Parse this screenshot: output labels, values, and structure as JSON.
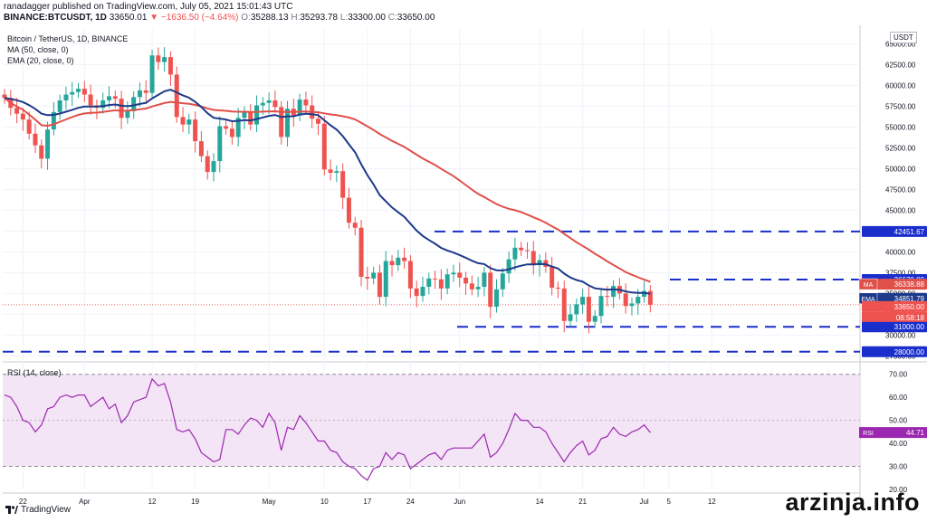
{
  "header": {
    "line1": "ranadagger published on TradingView.com, July 05, 2021 15:01:43 UTC",
    "symbol": "BINANCE:BTCUSDT, 1D",
    "last": "33650.01",
    "change": "−1636.50 (−4.64%)",
    "o_label": "O:",
    "o": "35288.13",
    "h_label": "H:",
    "h": "35293.78",
    "l_label": "L:",
    "l": "33300.00",
    "c_label": "C:",
    "c": "33650.00"
  },
  "legend": {
    "title": "Bitcoin / TetherUS, 1D, BINANCE",
    "ma": "MA (50, close, 0)",
    "ema": "EMA (20, close, 0)",
    "rsi": "RSI (14, close)"
  },
  "currency": "USDT",
  "brand": "TradingView",
  "watermark": "arzinja.info",
  "colors": {
    "up": "#26a69a",
    "down": "#ef5350",
    "ma": "#e0504a",
    "ema": "#1e3a8a",
    "level": "#1a2ecc",
    "rsi": "#9c27b0",
    "rsi_band": "#f3e5f5"
  },
  "chart_data": [
    {
      "type": "candlestick",
      "title": "Bitcoin / TetherUS, 1D, BINANCE",
      "ylim": [
        27000,
        67000
      ],
      "y_ticks": [
        "65000.00",
        "62500.00",
        "60000.00",
        "57500.00",
        "55000.00",
        "52500.00",
        "50000.00",
        "47500.00",
        "45000.00",
        "42500.00",
        "40000.00",
        "37500.00",
        "35000.00",
        "32500.00",
        "30000.00",
        "27500.00"
      ],
      "x_ticks": [
        {
          "label": "22",
          "i": 3
        },
        {
          "label": "Apr",
          "i": 13
        },
        {
          "label": "12",
          "i": 24
        },
        {
          "label": "19",
          "i": 31
        },
        {
          "label": "May",
          "i": 43
        },
        {
          "label": "10",
          "i": 52
        },
        {
          "label": "17",
          "i": 59
        },
        {
          "label": "24",
          "i": 66
        },
        {
          "label": "Jun",
          "i": 74
        },
        {
          "label": "14",
          "i": 87
        },
        {
          "label": "21",
          "i": 94
        },
        {
          "label": "Jul",
          "i": 104
        },
        {
          "label": "5",
          "i": 108
        },
        {
          "label": "12",
          "i": 115
        }
      ],
      "closes": [
        58500,
        57300,
        56600,
        55900,
        54200,
        52800,
        51200,
        54700,
        56800,
        58200,
        58900,
        59200,
        59600,
        58900,
        57600,
        57300,
        58200,
        58700,
        58400,
        56100,
        56900,
        58600,
        59400,
        59100,
        63600,
        62800,
        63400,
        61300,
        56200,
        55300,
        55900,
        53300,
        51500,
        49600,
        50900,
        55100,
        54800,
        53800,
        56100,
        56800,
        55300,
        57600,
        57900,
        58200,
        57400,
        53800,
        57200,
        56400,
        58300,
        57600,
        56000,
        55400,
        49900,
        49500,
        49700,
        46500,
        43500,
        42900,
        37000,
        36800,
        37500,
        34600,
        38900,
        38400,
        39300,
        38900,
        35600,
        34700,
        35800,
        36800,
        36700,
        35600,
        37300,
        37500,
        36900,
        36200,
        35500,
        35800,
        37500,
        33400,
        35500,
        37400,
        39100,
        40500,
        40200,
        40100,
        38400,
        39000,
        38200,
        35700,
        35600,
        31700,
        32500,
        33700,
        34600,
        31600,
        32300,
        34700,
        34600,
        35900,
        35000,
        33500,
        33800,
        34600,
        35300,
        33650
      ],
      "opens_offset_note": "",
      "levels": [
        {
          "label": "42451.67",
          "value": 42451.67
        },
        {
          "label": "36670.00",
          "value": 36670
        },
        {
          "label": "31000.00",
          "value": 31000
        },
        {
          "label": "28000.00",
          "value": 28000
        }
      ],
      "last_price": {
        "label": "33650.00",
        "value": 33650,
        "timer": "08:58:18"
      },
      "ma": {
        "name": "MA",
        "label": "36338.88",
        "value": 36338.88
      },
      "ema": {
        "name": "EMA",
        "label": "34851.79",
        "value": 34851.79
      },
      "grid": true
    },
    {
      "type": "line",
      "title": "RSI (14, close)",
      "ylim": [
        20,
        75
      ],
      "y_ticks": [
        "70.00",
        "60.00",
        "50.00",
        "40.00",
        "30.00",
        "20.00"
      ],
      "band": [
        30,
        70
      ],
      "current": {
        "label": "RSI",
        "value_label": "44.71",
        "value": 44.71
      },
      "values": [
        61,
        60,
        56,
        50,
        49,
        45,
        48,
        55,
        56,
        60,
        61,
        60,
        61,
        61,
        56,
        58,
        60,
        55,
        57,
        49,
        52,
        58,
        59,
        60,
        68,
        65,
        66,
        58,
        46,
        45,
        46,
        42,
        36,
        34,
        32,
        33,
        46,
        46,
        44,
        48,
        51,
        50,
        47,
        53,
        49,
        37,
        47,
        46,
        52,
        49,
        45,
        41,
        41,
        37,
        36,
        32,
        30,
        29,
        26,
        24,
        29,
        30,
        36,
        33,
        36,
        35,
        29,
        31,
        33,
        35,
        36,
        33,
        37,
        38,
        38,
        38,
        38,
        41,
        44,
        34,
        36,
        40,
        46,
        53,
        50,
        50,
        47,
        47,
        45,
        40,
        36,
        32,
        36,
        39,
        41,
        35,
        37,
        42,
        43,
        47,
        44,
        43,
        45,
        46,
        48,
        44.71
      ]
    }
  ]
}
